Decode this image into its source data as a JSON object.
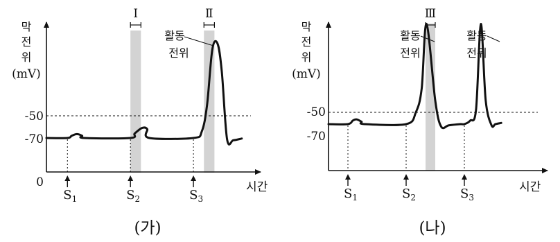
{
  "chart_data": [
    {
      "type": "line",
      "panel_label": "(가)",
      "ylabel_lines": [
        "막",
        "전",
        "위",
        "(mV)"
      ],
      "xlabel": "시간",
      "origin_label": "0",
      "y_ticks": [
        -50,
        -70
      ],
      "threshold": -50,
      "resting": -70,
      "stimuli": [
        {
          "label": "S",
          "sub": "1",
          "t": 1.0
        },
        {
          "label": "S",
          "sub": "2",
          "t": 4.0
        },
        {
          "label": "S",
          "sub": "3",
          "t": 7.0
        }
      ],
      "intervals": [
        {
          "label": "Ⅰ",
          "t_start": 4.0,
          "t_end": 4.5
        },
        {
          "label": "Ⅱ",
          "t_start": 7.5,
          "t_end": 8.0
        }
      ],
      "annotation": {
        "lines": [
          "활동",
          "전위"
        ]
      },
      "series": [
        {
          "x": [
            0,
            1.0,
            1.2,
            1.45,
            1.7,
            1.8,
            4.0,
            4.2,
            4.55,
            4.8,
            4.9,
            7.0,
            7.4,
            7.65,
            7.9,
            8.15,
            8.35,
            8.6,
            8.9,
            9.3
          ],
          "y": [
            -70,
            -70,
            -68,
            -66.5,
            -68,
            -70,
            -70,
            -66,
            -61,
            -62,
            -70,
            -70,
            -64,
            -40,
            10,
            15,
            -10,
            -71,
            -72,
            -70.5
          ]
        }
      ]
    },
    {
      "type": "line",
      "panel_label": "(나)",
      "ylabel_lines": [
        "막",
        "전",
        "위",
        "(mV)"
      ],
      "xlabel": "시간",
      "y_ticks": [
        -50,
        -70
      ],
      "threshold": -50,
      "resting": -60,
      "stimuli": [
        {
          "label": "S",
          "sub": "1",
          "t": 1.0
        },
        {
          "label": "S",
          "sub": "2",
          "t": 4.0
        },
        {
          "label": "S",
          "sub": "3",
          "t": 7.0
        }
      ],
      "intervals": [
        {
          "label": "Ⅲ",
          "t_start": 5.0,
          "t_end": 5.5
        }
      ],
      "annotations": [
        {
          "lines": [
            "활동",
            "전위"
          ]
        },
        {
          "lines": [
            "활동",
            "전위"
          ]
        }
      ],
      "series": [
        {
          "x": [
            0,
            1.0,
            1.25,
            1.45,
            1.7,
            1.85,
            4.0,
            4.5,
            4.8,
            5.05,
            5.5,
            5.8,
            6.2,
            6.8,
            7.0,
            7.3,
            7.6,
            7.85,
            8.1,
            8.4,
            8.6,
            8.9
          ],
          "y": [
            -60,
            -60,
            -57,
            -56,
            -58,
            -60,
            -60,
            -50,
            -30,
            25,
            -40,
            -62,
            -61,
            -60,
            -60,
            -57,
            -48,
            25,
            -40,
            -61,
            -60,
            -59
          ]
        }
      ]
    }
  ]
}
